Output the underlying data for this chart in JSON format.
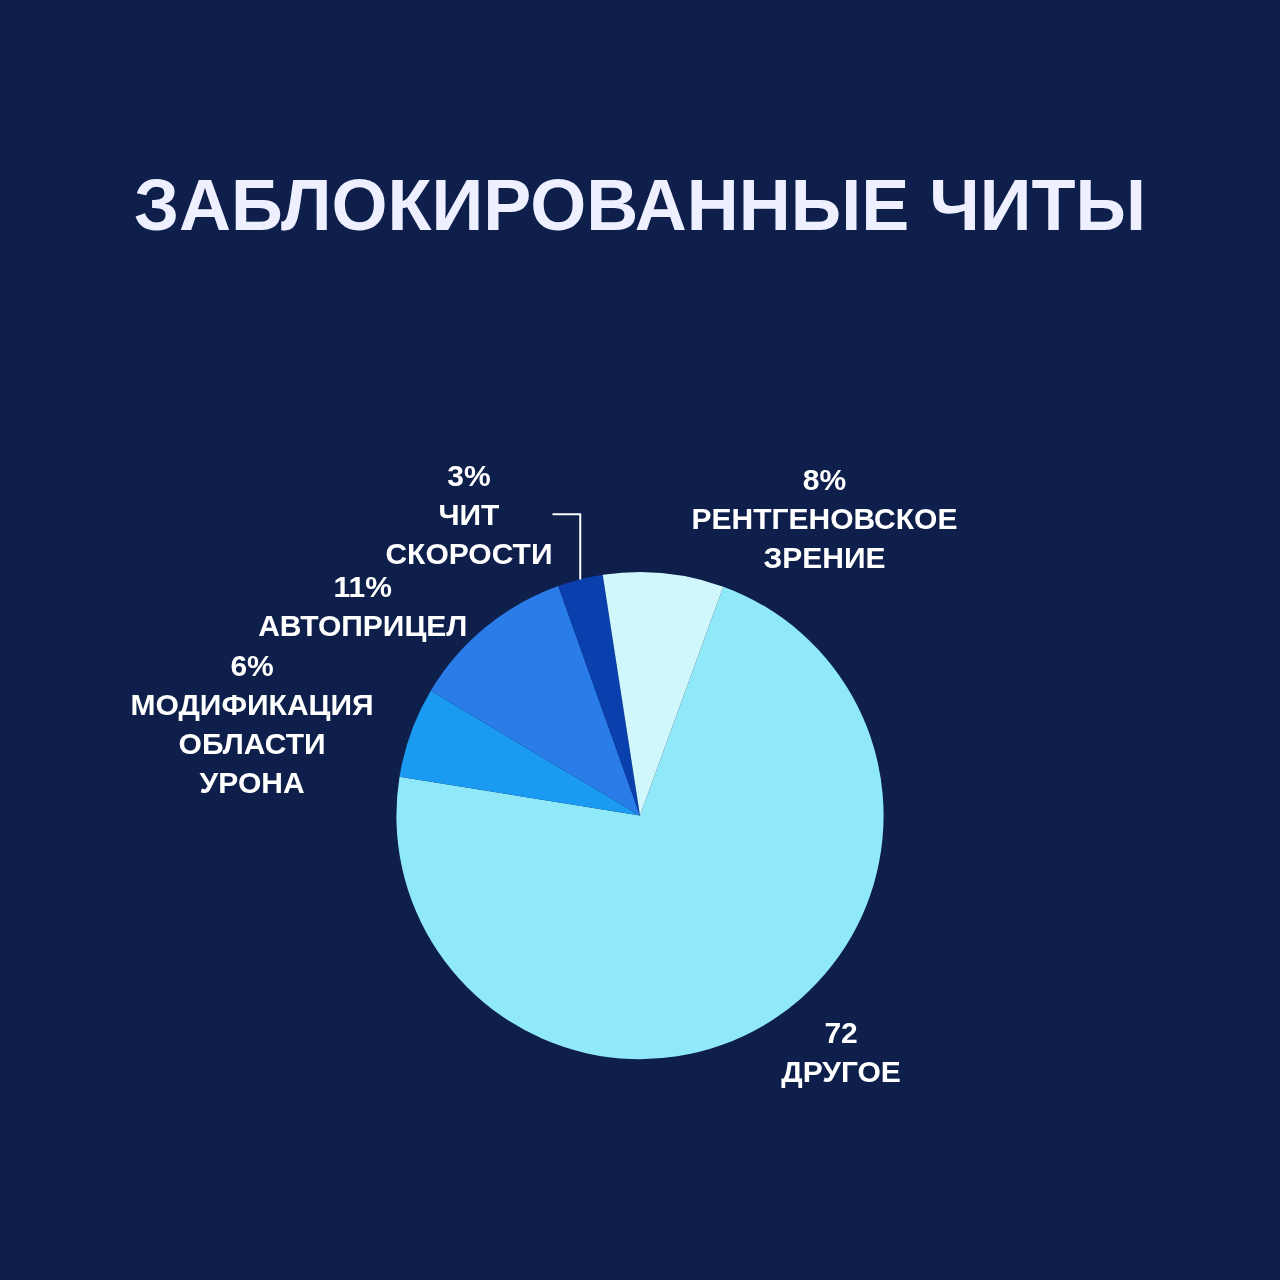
{
  "chart_data": {
    "type": "pie",
    "title": "ЗАБЛОКИРОВАННЫЕ ЧИТЫ",
    "categories": [
      "ДРУГОЕ",
      "МОДИФИКАЦИЯ ОБЛАСТИ УРОНА",
      "АВТОПРИЦЕЛ",
      "ЧИТ СКОРОСТИ",
      "РЕНТГЕНОВСКОЕ ЗРЕНИЕ"
    ],
    "values": [
      72,
      6,
      11,
      3,
      8
    ],
    "value_labels": [
      "72",
      "6%",
      "11%",
      "3%",
      "8%"
    ],
    "colors": [
      "#8fe9f8",
      "#1a9af0",
      "#2a7de8",
      "#0a3fae",
      "#d0f7fb"
    ],
    "legend": false
  }
}
